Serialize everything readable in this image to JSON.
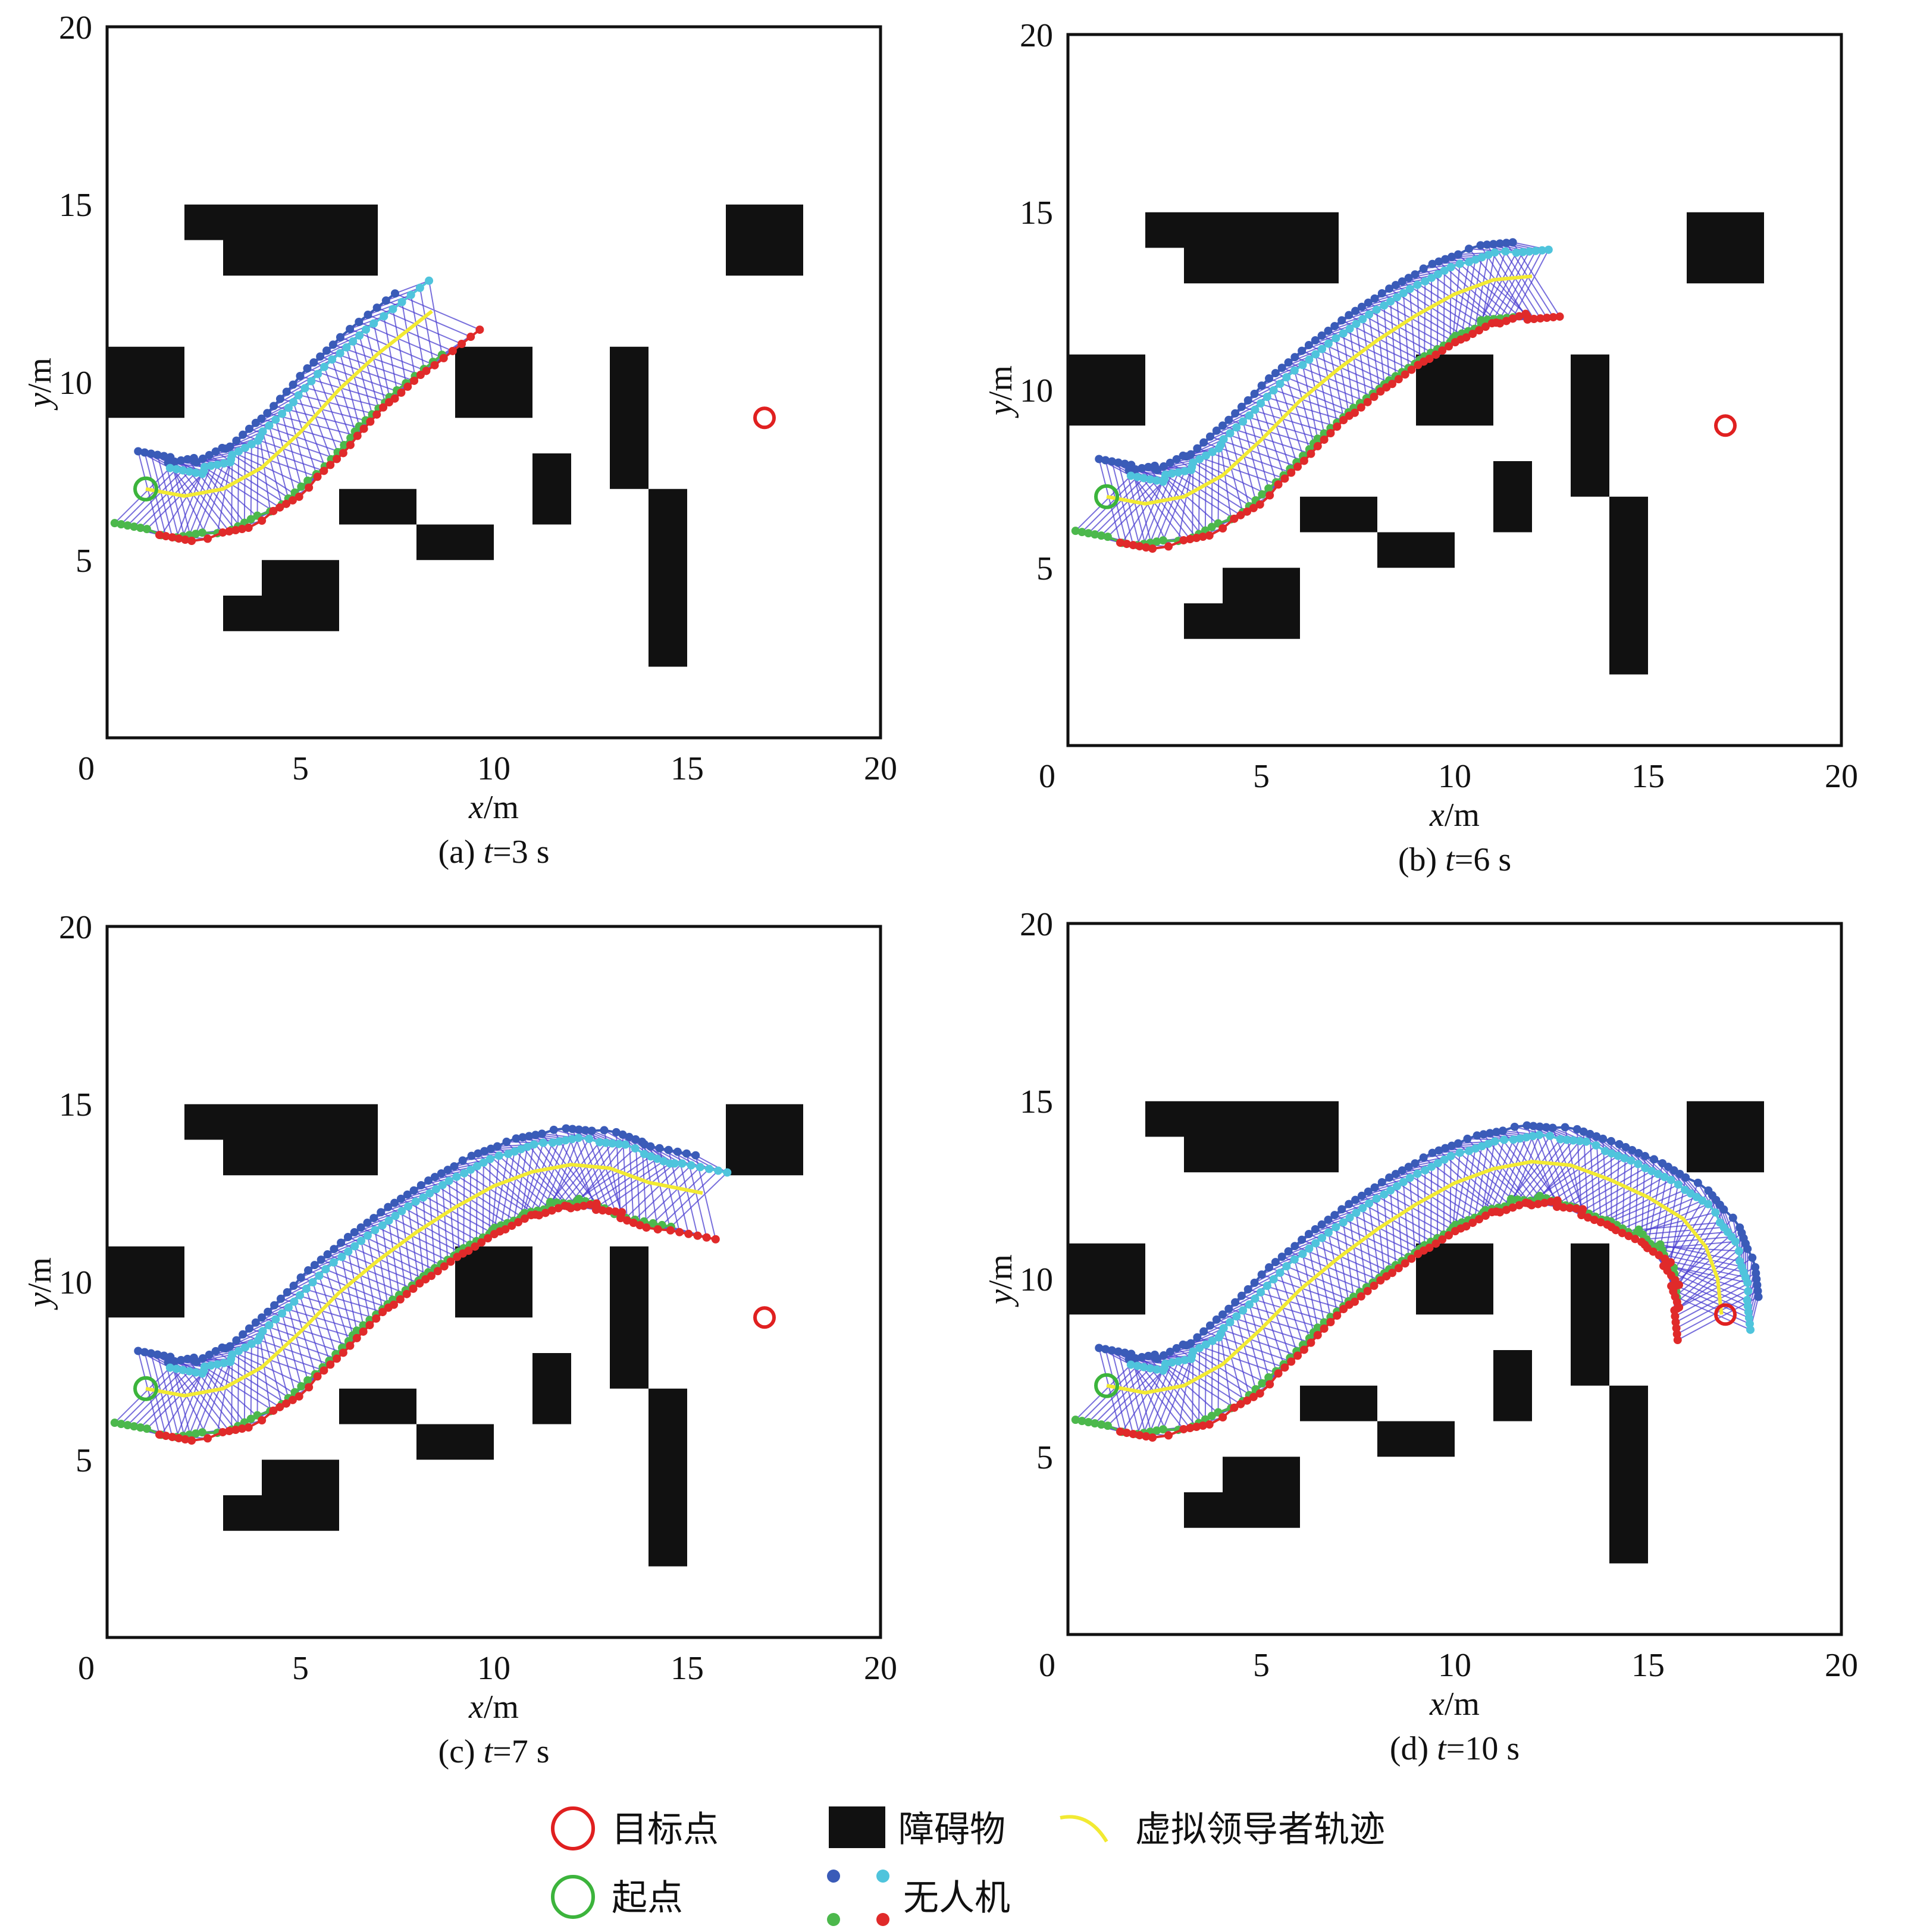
{
  "chart_data": [
    {
      "type": "scatter",
      "caption": {
        "prefix": "(a) ",
        "var": "t",
        "rest": "=3 s"
      },
      "xlabel": {
        "var": "x",
        "unit": "/m"
      },
      "ylabel": {
        "var": "y",
        "unit": "/m"
      },
      "xlim": [
        0,
        20
      ],
      "ylim": [
        0,
        20
      ],
      "xticks": [
        "0",
        "5",
        "10",
        "15",
        "20"
      ],
      "yticks": [
        "5",
        "10",
        "15",
        "20"
      ],
      "start": [
        1,
        7
      ],
      "goal": [
        17,
        9
      ],
      "leader": [
        [
          1,
          7
        ],
        [
          2,
          6.8
        ],
        [
          3,
          7
        ],
        [
          4,
          7.6
        ],
        [
          5,
          8.6
        ],
        [
          6,
          9.8
        ],
        [
          7,
          10.8
        ],
        [
          8.4,
          12
        ]
      ]
    },
    {
      "type": "scatter",
      "caption": {
        "prefix": "(b) ",
        "var": "t",
        "rest": "=6 s"
      },
      "xlabel": {
        "var": "x",
        "unit": "/m"
      },
      "ylabel": {
        "var": "y",
        "unit": "/m"
      },
      "xlim": [
        0,
        20
      ],
      "ylim": [
        0,
        20
      ],
      "xticks": [
        "0",
        "5",
        "10",
        "15",
        "20"
      ],
      "yticks": [
        "5",
        "10",
        "15",
        "20"
      ],
      "start": [
        1,
        7
      ],
      "goal": [
        17,
        9
      ],
      "leader": [
        [
          1,
          7
        ],
        [
          2,
          6.8
        ],
        [
          3,
          7
        ],
        [
          4,
          7.6
        ],
        [
          5,
          8.6
        ],
        [
          6,
          9.7
        ],
        [
          7,
          10.6
        ],
        [
          8,
          11.4
        ],
        [
          9,
          12.1
        ],
        [
          10,
          12.7
        ],
        [
          11,
          13.1
        ],
        [
          12,
          13.2
        ]
      ]
    },
    {
      "type": "scatter",
      "caption": {
        "prefix": "(c) ",
        "var": "t",
        "rest": "=7 s"
      },
      "xlabel": {
        "var": "x",
        "unit": "/m"
      },
      "ylabel": {
        "var": "y",
        "unit": "/m"
      },
      "xlim": [
        0,
        20
      ],
      "ylim": [
        0,
        20
      ],
      "xticks": [
        "0",
        "5",
        "10",
        "15",
        "20"
      ],
      "yticks": [
        "5",
        "10",
        "15",
        "20"
      ],
      "start": [
        1,
        7
      ],
      "goal": [
        17,
        9
      ],
      "leader": [
        [
          1,
          7
        ],
        [
          2,
          6.8
        ],
        [
          3,
          7
        ],
        [
          4,
          7.6
        ],
        [
          5,
          8.6
        ],
        [
          6,
          9.7
        ],
        [
          7,
          10.6
        ],
        [
          8,
          11.4
        ],
        [
          9,
          12.1
        ],
        [
          10,
          12.7
        ],
        [
          11,
          13.1
        ],
        [
          12,
          13.3
        ],
        [
          13,
          13.2
        ],
        [
          14,
          12.8
        ],
        [
          15.4,
          12.5
        ]
      ]
    },
    {
      "type": "scatter",
      "caption": {
        "prefix": "(d) ",
        "var": "t",
        "rest": "=10 s"
      },
      "xlabel": {
        "var": "x",
        "unit": "/m"
      },
      "ylabel": {
        "var": "y",
        "unit": "/m"
      },
      "xlim": [
        0,
        20
      ],
      "ylim": [
        0,
        20
      ],
      "xticks": [
        "0",
        "5",
        "10",
        "15",
        "20"
      ],
      "yticks": [
        "5",
        "10",
        "15",
        "20"
      ],
      "start": [
        1,
        7
      ],
      "goal": [
        17,
        9
      ],
      "leader": [
        [
          1,
          7
        ],
        [
          2,
          6.8
        ],
        [
          3,
          7
        ],
        [
          4,
          7.6
        ],
        [
          5,
          8.6
        ],
        [
          6,
          9.7
        ],
        [
          7,
          10.6
        ],
        [
          8,
          11.4
        ],
        [
          9,
          12.1
        ],
        [
          10,
          12.7
        ],
        [
          11,
          13.1
        ],
        [
          12,
          13.3
        ],
        [
          13,
          13.2
        ],
        [
          14,
          12.8
        ],
        [
          15,
          12.3
        ],
        [
          15.9,
          11.7
        ],
        [
          16.5,
          10.9
        ],
        [
          16.8,
          10
        ],
        [
          16.9,
          9
        ]
      ]
    }
  ],
  "obstacles": [
    [
      2,
      14,
      5,
      1
    ],
    [
      3,
      13,
      4,
      1
    ],
    [
      0,
      9,
      2,
      2
    ],
    [
      16,
      13,
      2,
      2
    ],
    [
      9,
      9,
      2,
      2
    ],
    [
      6,
      6,
      2,
      1
    ],
    [
      8,
      5,
      2,
      1
    ],
    [
      11,
      6,
      1,
      2
    ],
    [
      13,
      7,
      1,
      4
    ],
    [
      14,
      2,
      1,
      5
    ],
    [
      4,
      4,
      2,
      1
    ],
    [
      3,
      3,
      3,
      1
    ]
  ],
  "colors": {
    "goal": "#e02020",
    "start": "#3cb43c",
    "obstacle": "#111111",
    "leader": "#f2ea32",
    "uav_blue": "#3a5bb8",
    "uav_cyan": "#4fc4dc",
    "uav_green": "#4cb84c",
    "uav_red": "#e02a2a",
    "links": "#4b3fd0"
  },
  "legend": {
    "goal": "目标点",
    "start": "起点",
    "obstacle": "障碍物",
    "uav": "无人机",
    "leader": "虚拟领导者轨迹"
  }
}
